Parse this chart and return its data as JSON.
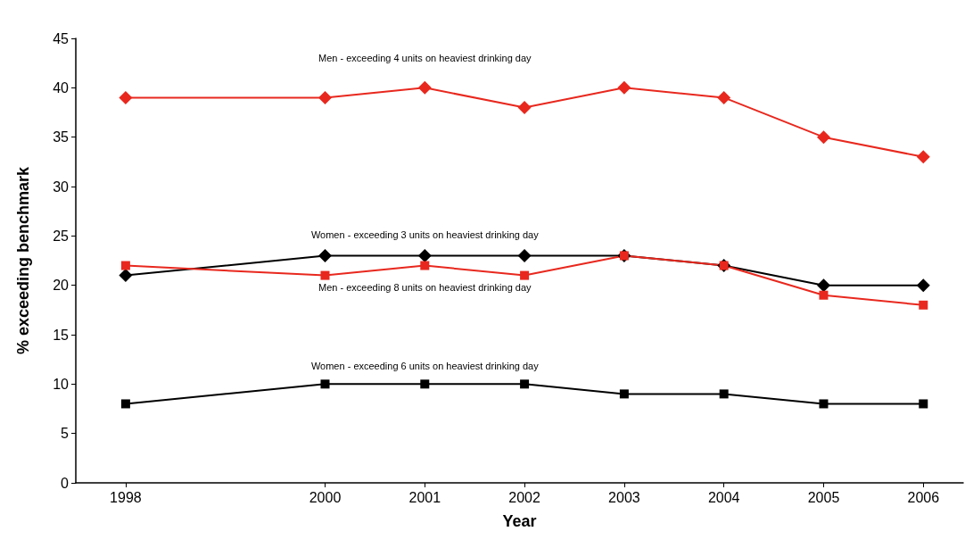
{
  "chart_data": {
    "type": "line",
    "xlabel": "Year",
    "ylabel": "% exceeding benchmark",
    "x": [
      1998,
      2000,
      2001,
      2002,
      2003,
      2004,
      2005,
      2006
    ],
    "xlim": [
      1997.5,
      2006.4
    ],
    "xticks": [
      1998,
      2000,
      2001,
      2002,
      2003,
      2004,
      2005,
      2006
    ],
    "ylim": [
      0,
      45
    ],
    "yticks": [
      0,
      5,
      10,
      15,
      20,
      25,
      30,
      35,
      40,
      45
    ],
    "grid": false,
    "legend": false,
    "series": [
      {
        "name": "Men - exceeding 4 units on heaviest drinking day",
        "color": "#e8281e",
        "marker": "diamond",
        "values": [
          39,
          39,
          40,
          38,
          40,
          39,
          35,
          33
        ]
      },
      {
        "name": "Women - exceeding 3 units on heaviest drinking day",
        "color": "#000000",
        "marker": "diamond",
        "values": [
          21,
          23,
          23,
          23,
          23,
          22,
          20,
          20
        ]
      },
      {
        "name": "Men - exceeding 8 units on heaviest drinking day",
        "color": "#e8281e",
        "marker": "square",
        "values": [
          22,
          21,
          22,
          21,
          23,
          22,
          19,
          18
        ]
      },
      {
        "name": "Women - exceeding 6 units on heaviest drinking day",
        "color": "#000000",
        "marker": "square",
        "values": [
          8,
          10,
          10,
          10,
          9,
          9,
          8,
          8
        ]
      }
    ]
  }
}
